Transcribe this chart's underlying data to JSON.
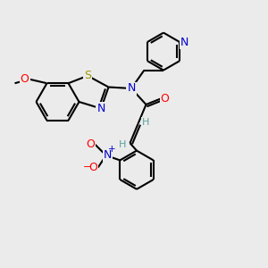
{
  "background_color": "#ebebeb",
  "bond_color": "#000000",
  "atom_colors": {
    "N": "#0000cc",
    "O": "#ff0000",
    "S": "#999900",
    "H": "#5aa0a0",
    "C": "#000000"
  },
  "figsize": [
    3.0,
    3.0
  ],
  "dpi": 100
}
